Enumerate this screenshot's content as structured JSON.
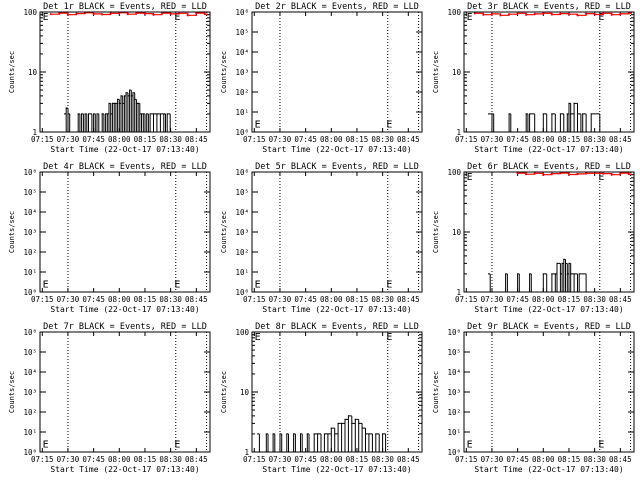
{
  "figure": {
    "xtick_labels": [
      "07:15",
      "07:30",
      "07:45",
      "08:00",
      "08:15",
      "08:30",
      "08:45"
    ],
    "xlabel": "Start Time (22-Oct-17 07:13:40)",
    "ylabel": "Counts/sec",
    "colors": {
      "events": "#000000",
      "lld": "#ff0000",
      "axes": "#000000",
      "background": "#ffffff"
    }
  },
  "chart_data": [
    {
      "type": "line",
      "title": "Det 1r BLACK = Events, RED = LLD",
      "ylabel": "Counts/sec",
      "xlabel": "Start Time (22-Oct-17 07:13:40)",
      "xlim": [
        "07:13:40",
        "08:53:00"
      ],
      "y_scale": "log",
      "ylim": [
        1,
        100
      ],
      "ytick_labels": [
        "1",
        "10",
        "100"
      ],
      "marker_lines": [
        "07:30",
        "08:33",
        "08:51"
      ],
      "e_markers": [
        {
          "x": "07:14",
          "y": 100
        },
        {
          "x": "08:31",
          "y": 100
        }
      ],
      "series": [
        {
          "name": "Events",
          "color": "#000000",
          "x": [
            "07:28",
            "07:29",
            "07:30",
            "07:31",
            "07:36",
            "07:37",
            "07:38",
            "07:39",
            "07:40",
            "07:41",
            "07:42",
            "07:44",
            "07:45",
            "07:46",
            "07:47",
            "07:48",
            "07:50",
            "07:51",
            "07:52",
            "07:53",
            "07:54",
            "07:55",
            "07:56",
            "07:57",
            "07:58",
            "07:59",
            "08:00",
            "08:01",
            "08:02",
            "08:03",
            "08:04",
            "08:05",
            "08:06",
            "08:07",
            "08:08",
            "08:09",
            "08:10",
            "08:11",
            "08:12",
            "08:13",
            "08:14",
            "08:15",
            "08:16",
            "08:17",
            "08:18",
            "08:20",
            "08:22",
            "08:24",
            "08:26",
            "08:27",
            "08:28"
          ],
          "y": [
            2,
            2.5,
            2,
            1,
            2,
            1,
            2,
            1,
            2,
            1,
            2,
            1,
            2,
            1,
            2,
            1,
            2,
            1,
            2,
            2,
            3,
            2,
            3,
            3,
            3,
            3.5,
            3,
            4,
            3,
            4,
            4.5,
            4,
            5,
            4,
            4.5,
            3.5,
            3,
            3,
            2,
            2,
            2,
            1,
            2,
            1,
            2,
            2,
            2,
            2,
            2,
            1,
            2
          ]
        },
        {
          "name": "LLD",
          "color": "#ff0000",
          "x": [
            "07:20",
            "07:25",
            "07:30",
            "07:35",
            "07:40",
            "07:45",
            "07:50",
            "07:55",
            "08:00",
            "08:05",
            "08:10",
            "08:15",
            "08:20",
            "08:25",
            "08:30",
            "08:35",
            "08:40",
            "08:45",
            "08:50"
          ],
          "y": [
            92,
            96,
            90,
            94,
            97,
            93,
            91,
            95,
            97,
            92,
            96,
            94,
            90,
            96,
            93,
            95,
            88,
            96,
            92
          ]
        }
      ]
    },
    {
      "type": "line",
      "title": "Det 2r BLACK = Events, RED = LLD",
      "ylabel": "Counts/sec",
      "xlabel": "Start Time (22-Oct-17 07:13:40)",
      "xlim": [
        "07:13:40",
        "08:53:00"
      ],
      "y_scale": "log",
      "ylim": [
        1,
        1000000
      ],
      "ytick_labels": [
        "10⁰",
        "10¹",
        "10²",
        "10³",
        "10⁴",
        "10⁵",
        "10⁶"
      ],
      "marker_lines": [
        "07:30",
        "08:33",
        "08:51"
      ],
      "e_markers": [
        {
          "x": "07:14",
          "y": 1.5
        },
        {
          "x": "08:31",
          "y": 1.5
        }
      ],
      "series": []
    },
    {
      "type": "line",
      "title": "Det 3r BLACK = Events, RED = LLD",
      "ylabel": "Counts/sec",
      "xlabel": "Start Time (22-Oct-17 07:13:40)",
      "xlim": [
        "07:13:40",
        "08:53:00"
      ],
      "y_scale": "log",
      "ylim": [
        1,
        100
      ],
      "ytick_labels": [
        "1",
        "10",
        "100"
      ],
      "marker_lines": [
        "07:30",
        "08:33",
        "08:51"
      ],
      "e_markers": [
        {
          "x": "07:14",
          "y": 100
        },
        {
          "x": "08:31",
          "y": 100
        }
      ],
      "series": [
        {
          "name": "Events",
          "color": "#000000",
          "x": [
            "07:28",
            "07:30",
            "07:31",
            "07:40",
            "07:41",
            "07:50",
            "07:51",
            "07:52",
            "07:55",
            "08:00",
            "08:02",
            "08:05",
            "08:07",
            "08:10",
            "08:12",
            "08:14",
            "08:15",
            "08:16",
            "08:18",
            "08:20",
            "08:22",
            "08:23",
            "08:25",
            "08:28",
            "08:33"
          ],
          "y": [
            2,
            2,
            1,
            2,
            1,
            2,
            1,
            2,
            1,
            2,
            1,
            2,
            1,
            2,
            1,
            2,
            3,
            2,
            3,
            2,
            1,
            2,
            1,
            2,
            1
          ]
        },
        {
          "name": "LLD",
          "color": "#ff0000",
          "x": [
            "07:20",
            "07:25",
            "07:30",
            "07:35",
            "07:40",
            "07:45",
            "07:50",
            "07:55",
            "08:00",
            "08:05",
            "08:10",
            "08:15",
            "08:20",
            "08:25",
            "08:30",
            "08:35",
            "08:40",
            "08:45",
            "08:50"
          ],
          "y": [
            95,
            90,
            93,
            88,
            92,
            95,
            90,
            93,
            95,
            91,
            94,
            92,
            88,
            94,
            91,
            95,
            90,
            93,
            96
          ]
        }
      ]
    },
    {
      "type": "line",
      "title": "Det 4r BLACK = Events, RED = LLD",
      "ylabel": "Counts/sec",
      "xlabel": "Start Time (22-Oct-17 07:13:40)",
      "xlim": [
        "07:13:40",
        "08:53:00"
      ],
      "y_scale": "log",
      "ylim": [
        1,
        1000000
      ],
      "ytick_labels": [
        "10⁰",
        "10¹",
        "10²",
        "10³",
        "10⁴",
        "10⁵",
        "10⁶"
      ],
      "marker_lines": [
        "07:30",
        "08:33",
        "08:51"
      ],
      "e_markers": [
        {
          "x": "07:14",
          "y": 1.5
        },
        {
          "x": "08:31",
          "y": 1.5
        }
      ],
      "series": []
    },
    {
      "type": "line",
      "title": "Det 5r BLACK = Events, RED = LLD",
      "ylabel": "Counts/sec",
      "xlabel": "Start Time (22-Oct-17 07:13:40)",
      "xlim": [
        "07:13:40",
        "08:53:00"
      ],
      "y_scale": "log",
      "ylim": [
        1,
        1000000
      ],
      "ytick_labels": [
        "10⁰",
        "10¹",
        "10²",
        "10³",
        "10⁴",
        "10⁵",
        "10⁶"
      ],
      "marker_lines": [
        "07:30",
        "08:33",
        "08:51"
      ],
      "e_markers": [
        {
          "x": "07:14",
          "y": 1.5
        },
        {
          "x": "08:31",
          "y": 1.5
        }
      ],
      "series": []
    },
    {
      "type": "line",
      "title": "Det 6r BLACK = Events, RED = LLD",
      "ylabel": "Counts/sec",
      "xlabel": "Start Time (22-Oct-17 07:13:40)",
      "xlim": [
        "07:13:40",
        "08:53:00"
      ],
      "y_scale": "log",
      "ylim": [
        1,
        100
      ],
      "ytick_labels": [
        "1",
        "10",
        "100"
      ],
      "marker_lines": [
        "07:30",
        "08:33",
        "08:51"
      ],
      "e_markers": [
        {
          "x": "07:14",
          "y": 100
        },
        {
          "x": "08:31",
          "y": 100
        }
      ],
      "series": [
        {
          "name": "Events",
          "color": "#000000",
          "x": [
            "07:28",
            "07:29",
            "07:38",
            "07:39",
            "07:45",
            "07:46",
            "07:52",
            "07:53",
            "08:00",
            "08:02",
            "08:05",
            "08:07",
            "08:08",
            "08:10",
            "08:11",
            "08:12",
            "08:13",
            "08:14",
            "08:15",
            "08:16",
            "08:18",
            "08:20",
            "08:21",
            "08:25"
          ],
          "y": [
            2,
            1,
            2,
            1,
            2,
            1,
            2,
            1,
            2,
            1,
            2,
            2,
            3,
            2,
            3,
            3.5,
            3,
            2,
            3,
            2,
            2,
            1,
            2,
            1
          ]
        },
        {
          "name": "LLD",
          "color": "#ff0000",
          "x": [
            "07:45",
            "07:50",
            "07:55",
            "08:00",
            "08:05",
            "08:10",
            "08:15",
            "08:20",
            "08:25",
            "08:35",
            "08:40",
            "08:45",
            "08:50"
          ],
          "y": [
            96,
            92,
            95,
            90,
            94,
            96,
            91,
            93,
            95,
            94,
            90,
            96,
            92
          ]
        }
      ]
    },
    {
      "type": "line",
      "title": "Det 7r BLACK = Events, RED = LLD",
      "ylabel": "Counts/sec",
      "xlabel": "Start Time (22-Oct-17 07:13:40)",
      "xlim": [
        "07:13:40",
        "08:53:00"
      ],
      "y_scale": "log",
      "ylim": [
        1,
        1000000
      ],
      "ytick_labels": [
        "10⁰",
        "10¹",
        "10²",
        "10³",
        "10⁴",
        "10⁵",
        "10⁶"
      ],
      "marker_lines": [
        "07:30",
        "08:33",
        "08:51"
      ],
      "e_markers": [
        {
          "x": "07:14",
          "y": 1.5
        },
        {
          "x": "08:31",
          "y": 1.5
        }
      ],
      "series": []
    },
    {
      "type": "line",
      "title": "Det 8r BLACK = Events, RED = LLD",
      "ylabel": "Counts/sec",
      "xlabel": "Start Time (22-Oct-17 07:13:40)",
      "xlim": [
        "07:13:40",
        "08:53:00"
      ],
      "y_scale": "log",
      "ylim": [
        1,
        100
      ],
      "ytick_labels": [
        "1",
        "10",
        "100"
      ],
      "marker_lines": [
        "07:30",
        "08:33",
        "08:51"
      ],
      "e_markers": [
        {
          "x": "07:14",
          "y": 100
        },
        {
          "x": "08:31",
          "y": 100
        }
      ],
      "series": [
        {
          "name": "Events",
          "color": "#000000",
          "x": [
            "07:17",
            "07:18",
            "07:22",
            "07:23",
            "07:26",
            "07:27",
            "07:30",
            "07:31",
            "07:34",
            "07:35",
            "07:38",
            "07:39",
            "07:42",
            "07:43",
            "07:46",
            "07:47",
            "07:50",
            "07:52",
            "07:54",
            "07:56",
            "07:58",
            "08:00",
            "08:02",
            "08:04",
            "08:06",
            "08:08",
            "08:10",
            "08:12",
            "08:14",
            "08:16",
            "08:18",
            "08:20",
            "08:22",
            "08:24",
            "08:26",
            "08:28",
            "08:30"
          ],
          "y": [
            2,
            1,
            2,
            1,
            2,
            1,
            2,
            1,
            2,
            1,
            2,
            1,
            2,
            1,
            2,
            1,
            2,
            2,
            1,
            2,
            2,
            2.5,
            2,
            3,
            3,
            3.5,
            4,
            3,
            3.5,
            3,
            2.5,
            2,
            2,
            1,
            2,
            1,
            2
          ]
        }
      ]
    },
    {
      "type": "line",
      "title": "Det 9r BLACK = Events, RED = LLD",
      "ylabel": "Counts/sec",
      "xlabel": "Start Time (22-Oct-17 07:13:40)",
      "xlim": [
        "07:13:40",
        "08:53:00"
      ],
      "y_scale": "log",
      "ylim": [
        1,
        1000000
      ],
      "ytick_labels": [
        "10⁰",
        "10¹",
        "10²",
        "10³",
        "10⁴",
        "10⁵",
        "10⁶"
      ],
      "marker_lines": [
        "07:30",
        "08:33",
        "08:51"
      ],
      "e_markers": [
        {
          "x": "07:14",
          "y": 1.5
        },
        {
          "x": "08:31",
          "y": 1.5
        }
      ],
      "series": []
    }
  ]
}
